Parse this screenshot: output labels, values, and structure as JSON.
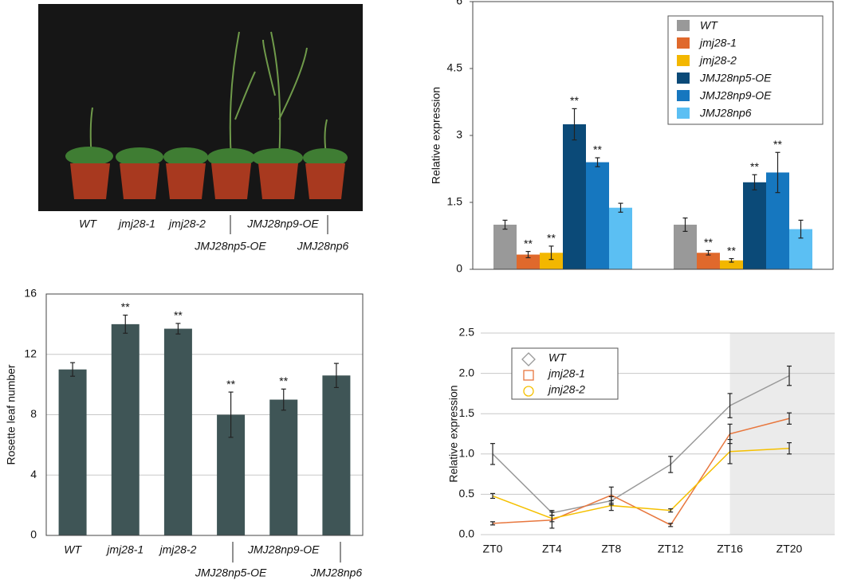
{
  "photo": {
    "labels": [
      "WT",
      "jmj28-1",
      "jmj28-2",
      "JMJ28np5-OE",
      "JMJ28np9-OE",
      "JMJ28np6"
    ]
  },
  "chart_data": [
    {
      "type": "bar",
      "y_label": "Relative expression",
      "categories": [
        null,
        null
      ],
      "ylim": [
        0,
        6
      ],
      "yticks": [
        0,
        1.5,
        3,
        4.5,
        6
      ],
      "grid": false,
      "legend": "upper right",
      "series": [
        {
          "name": "WT",
          "color": "#999999",
          "values": [
            1.0,
            1.0
          ],
          "errors": [
            0.1,
            0.15
          ]
        },
        {
          "name": "jmj28-1",
          "color": "#e0692c",
          "values": [
            0.33,
            0.37
          ],
          "errors": [
            0.07,
            0.05
          ],
          "annotations": [
            "**",
            "**"
          ]
        },
        {
          "name": "jmj28-2",
          "color": "#f3b700",
          "values": [
            0.37,
            0.2
          ],
          "errors": [
            0.15,
            0.04
          ],
          "annotations": [
            "**",
            "**"
          ]
        },
        {
          "name": "JMJ28np5-OE",
          "color": "#0b4a78",
          "values": [
            3.25,
            1.95
          ],
          "errors": [
            0.35,
            0.17
          ],
          "annotations": [
            "**",
            "**"
          ]
        },
        {
          "name": "JMJ28np9-OE",
          "color": "#1677bf",
          "values": [
            2.4,
            2.17
          ],
          "errors": [
            0.1,
            0.45
          ],
          "annotations": [
            "**",
            "**"
          ]
        },
        {
          "name": "JMJ28np6",
          "color": "#5bbff3",
          "values": [
            1.38,
            0.9
          ],
          "errors": [
            0.1,
            0.2
          ]
        }
      ]
    },
    {
      "type": "bar",
      "y_label": "Rosette leaf number",
      "categories": [
        "WT",
        "jmj28-1",
        "jmj28-2",
        "JMJ28np5-OE",
        "JMJ28np9-OE",
        "JMJ28np6"
      ],
      "values": [
        11,
        14,
        13.7,
        8,
        9,
        10.6
      ],
      "errors": [
        0.45,
        0.6,
        0.35,
        1.5,
        0.7,
        0.8
      ],
      "annotations": [
        null,
        "**",
        "**",
        "**",
        "**",
        null
      ],
      "color": "#3f5556",
      "ylim": [
        0,
        16
      ],
      "yticks": [
        0,
        4,
        8,
        12,
        16
      ],
      "grid": true
    },
    {
      "type": "line",
      "y_label": "Relative expression",
      "categories": [
        "ZT0",
        "ZT4",
        "ZT8",
        "ZT12",
        "ZT16",
        "ZT20"
      ],
      "ylim": [
        0,
        2.5
      ],
      "yticks": [
        {
          "value": 0,
          "label": "0.0"
        },
        {
          "value": 0.5,
          "label": "0.5"
        },
        {
          "value": 1,
          "label": "1.0"
        },
        {
          "value": 1.5,
          "label": "1.5"
        },
        {
          "value": 2,
          "label": "2.0"
        },
        {
          "value": 2.5,
          "label": "2.5"
        }
      ],
      "grid": true,
      "legend": "upper left",
      "series": [
        {
          "name": "WT",
          "color": "#999999",
          "marker": "diamond",
          "values": [
            1.0,
            0.27,
            0.42,
            0.87,
            1.6,
            1.97
          ],
          "errors": [
            0.13,
            0.03,
            0.05,
            0.1,
            0.15,
            0.12
          ]
        },
        {
          "name": "jmj28-1",
          "color": "#e8773e",
          "marker": "square",
          "values": [
            0.14,
            0.18,
            0.49,
            0.12,
            1.25,
            1.44
          ],
          "errors": [
            0.02,
            0.1,
            0.1,
            0.02,
            0.12,
            0.07
          ]
        },
        {
          "name": "jmj28-2",
          "color": "#f5c000",
          "marker": "circle",
          "values": [
            0.48,
            0.2,
            0.36,
            0.3,
            1.03,
            1.07
          ],
          "errors": [
            0.03,
            0.04,
            0.06,
            0.02,
            0.15,
            0.07
          ]
        }
      ]
    }
  ]
}
